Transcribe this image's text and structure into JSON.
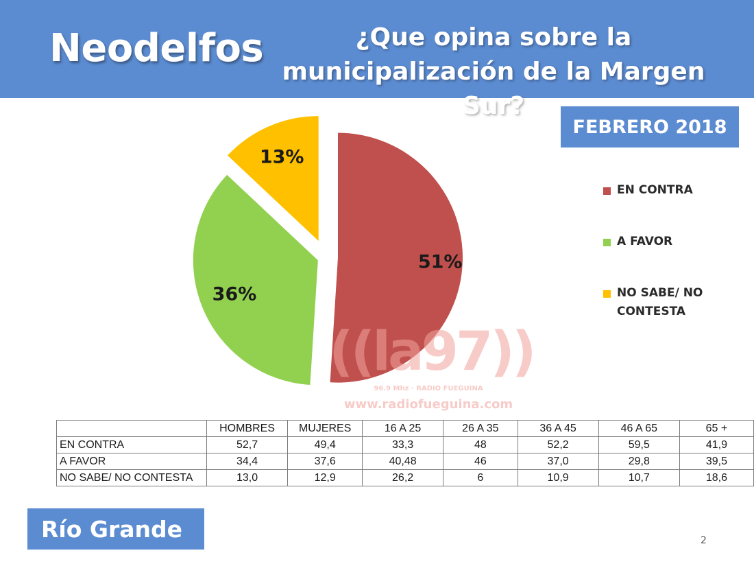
{
  "header": {
    "brand": "Neodelfos",
    "question_line1": "¿Que opina sobre la",
    "question_line2": "municipalización de la Margen Sur?"
  },
  "date_label": "FEBRERO 2018",
  "chart_data": [
    {
      "type": "pie",
      "title": "",
      "slices": [
        {
          "label": "EN CONTRA",
          "value": 51,
          "value_label": "51%",
          "color": "#c0504d"
        },
        {
          "label": "A FAVOR",
          "value": 36,
          "value_label": "36%",
          "color": "#92d050"
        },
        {
          "label": "NO SABE/ NO CONTESTA",
          "value": 13,
          "value_label": "13%",
          "color": "#ffc000"
        }
      ],
      "exploded": true,
      "legend_position": "right"
    },
    {
      "type": "table",
      "columns": [
        "",
        "HOMBRES",
        "MUJERES",
        "16 A 25",
        "26 A 35",
        "36 A 45",
        "46 A 65",
        "65 +"
      ],
      "rows": [
        {
          "label": "EN CONTRA",
          "values": [
            "52,7",
            "49,4",
            "33,3",
            "48",
            "52,2",
            "59,5",
            "41,9"
          ]
        },
        {
          "label": "A FAVOR",
          "values": [
            "34,4",
            "37,6",
            "40,48",
            "46",
            "37,0",
            "29,8",
            "39,5"
          ]
        },
        {
          "label": "NO SABE/ NO CONTESTA",
          "values": [
            "13,0",
            "12,9",
            "26,2",
            "6",
            "10,9",
            "10,7",
            "18,6"
          ]
        }
      ]
    }
  ],
  "legend": {
    "items": [
      {
        "label_lines": [
          "EN CONTRA"
        ],
        "color": "#c0504d"
      },
      {
        "label_lines": [
          "A FAVOR"
        ],
        "color": "#92d050"
      },
      {
        "label_lines": [
          "NO SABE/ NO",
          "CONTESTA"
        ],
        "color": "#ffc000"
      }
    ]
  },
  "watermark": {
    "logo": "((la97))",
    "subtitle": "96.9 Mhz · RADIO FUEGUINA",
    "url": "www.radiofueguina.com"
  },
  "footer": {
    "city": "Río Grande",
    "page_number": "2"
  }
}
